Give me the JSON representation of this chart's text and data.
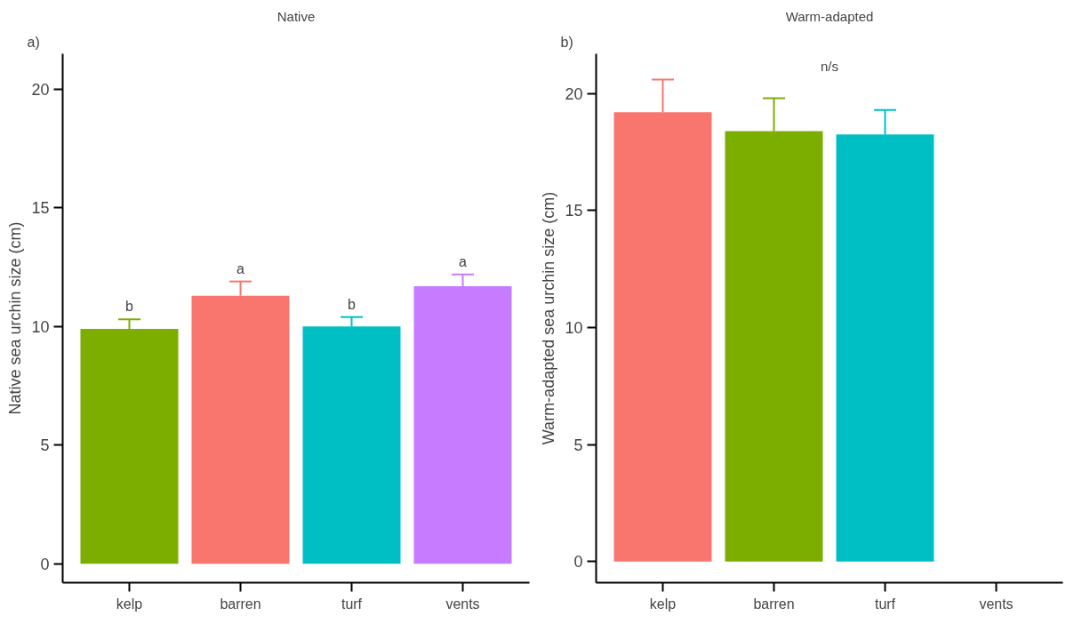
{
  "chart_data": [
    {
      "type": "bar",
      "title": "Native",
      "ylabel": "Native sea urchin size (cm)",
      "categories": [
        "kelp",
        "barren",
        "turf",
        "vents"
      ],
      "values": [
        9.9,
        11.3,
        10.0,
        11.7
      ],
      "colors": [
        "#7cae00",
        "#f8766d",
        "#00bfc4",
        "#c77cff"
      ],
      "errors": [
        [
          9.9,
          10.3
        ],
        [
          11.3,
          11.9
        ],
        [
          10.0,
          10.4
        ],
        [
          11.7,
          12.2
        ]
      ],
      "ylim": [
        -0.8,
        21.5
      ],
      "yticks": [
        0,
        5,
        10,
        15,
        20
      ],
      "grid": false,
      "annotations": [
        "a)",
        {
          "text": "b",
          "x": "kelp",
          "y": 10.3
        },
        {
          "text": "a",
          "x": "barren",
          "y": 11.9
        },
        {
          "text": "b",
          "x": "turf",
          "y": 10.4
        },
        {
          "text": "a",
          "x": "vents",
          "y": 12.2
        }
      ]
    },
    {
      "type": "bar",
      "title": "Warm-adapted",
      "ylabel": "Warm-adapted sea urchin size (cm)",
      "categories": [
        "kelp",
        "barren",
        "turf",
        "vents"
      ],
      "values": [
        19.2,
        18.4,
        18.25,
        null
      ],
      "colors": [
        "#f8766d",
        "#7cae00",
        "#00bfc4",
        "#c77cff"
      ],
      "errors": [
        [
          19.2,
          20.6
        ],
        [
          18.4,
          19.8
        ],
        [
          18.25,
          19.3
        ],
        null
      ],
      "ylim": [
        -0.9,
        21.7
      ],
      "yticks": [
        0,
        5,
        10,
        15,
        20
      ],
      "grid": false,
      "annotations": [
        "b)",
        "n/s"
      ]
    }
  ]
}
